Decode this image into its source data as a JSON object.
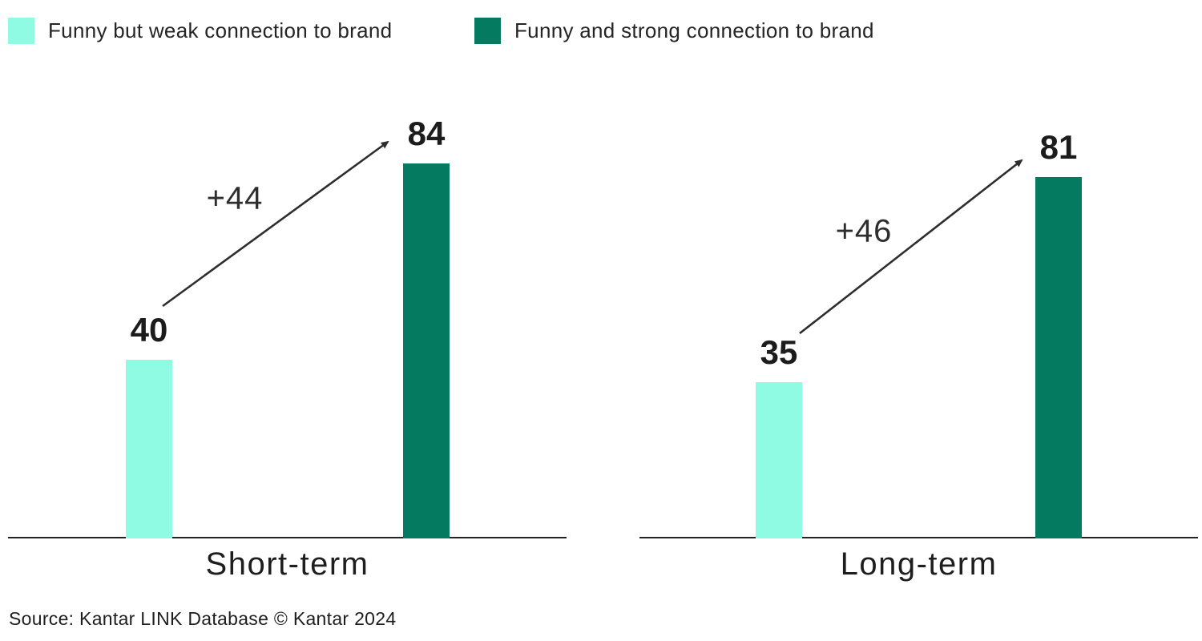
{
  "legend": {
    "items": [
      {
        "label": "Funny but weak connection to brand",
        "color": "#8FFBE2"
      },
      {
        "label": "Funny and strong connection to brand",
        "color": "#047A60"
      }
    ]
  },
  "chart_data": {
    "type": "bar",
    "title": "",
    "categories": [
      "Short-term",
      "Long-term"
    ],
    "series": [
      {
        "name": "Funny but weak connection to brand",
        "color": "#8FFBE2",
        "values": [
          40,
          35
        ]
      },
      {
        "name": "Funny and strong connection to brand",
        "color": "#047A60",
        "values": [
          84,
          81
        ]
      }
    ],
    "annotations": [
      "+44",
      "+46"
    ],
    "ylim": [
      0,
      97
    ],
    "y_axis_visible": false,
    "grid": false,
    "legend_position": "top-left",
    "groups": [
      {
        "category": "Short-term",
        "weak": 40,
        "strong": 84,
        "delta": "+44"
      },
      {
        "category": "Long-term",
        "weak": 35,
        "strong": 81,
        "delta": "+46"
      }
    ]
  },
  "colors": {
    "weak_bar": "#8FFBE2",
    "strong_bar": "#047A60",
    "axis": "#232323",
    "arrow": "#2e2e2e"
  },
  "source": "Source: Kantar LINK Database © Kantar 2024"
}
